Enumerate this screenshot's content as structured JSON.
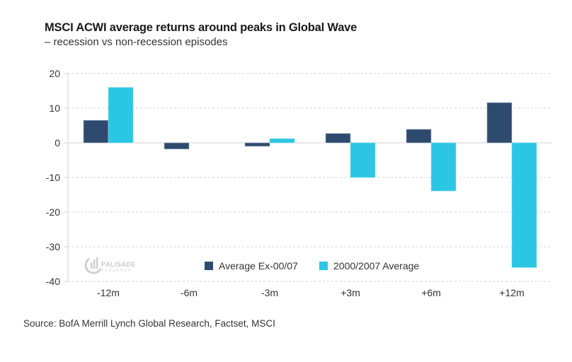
{
  "chart_data": {
    "type": "bar",
    "title": "MSCI ACWI average returns around peaks in Global Wave",
    "subtitle": "– recession vs non-recession episodes",
    "xlabel": "",
    "ylabel": "",
    "categories": [
      "-12m",
      "-6m",
      "-3m",
      "+3m",
      "+6m",
      "+12m"
    ],
    "series": [
      {
        "name": "Average Ex-00/07",
        "color": "#2e4a6e",
        "values": [
          6.5,
          -1.8,
          -1.0,
          2.7,
          3.9,
          11.6
        ]
      },
      {
        "name": "2000/2007 Average",
        "color": "#2bc6e4",
        "values": [
          16.0,
          0.0,
          1.2,
          -10.0,
          -13.9,
          -36.0
        ]
      }
    ],
    "ylim": [
      -40,
      20
    ],
    "yticks": [
      20,
      10,
      0,
      -10,
      -20,
      -30,
      -40
    ],
    "grid": true,
    "legend_position": "bottom-center-inside"
  },
  "watermark": {
    "name": "PALISADE",
    "sub": "RESEARCH"
  },
  "source": "Source: BofA Merrill Lynch Global Research, Factset, MSCI"
}
